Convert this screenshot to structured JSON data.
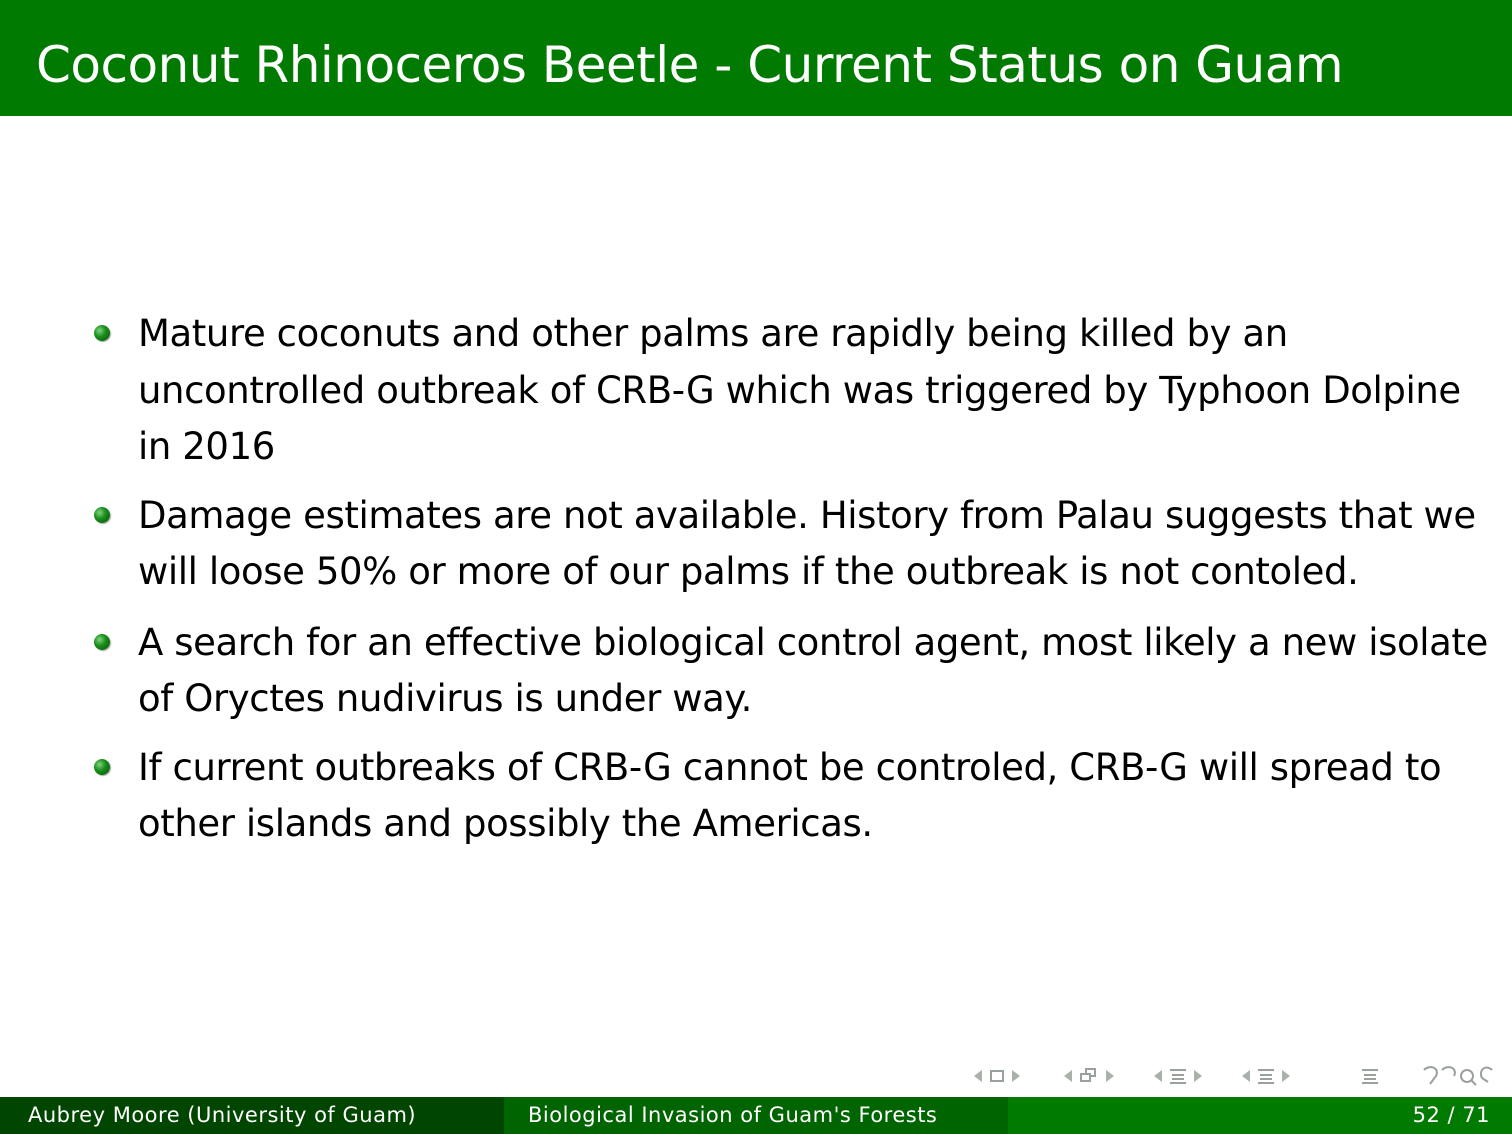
{
  "slide": {
    "title": "Coconut Rhinoceros Beetle - Current Status on Guam",
    "bullets": [
      "Mature coconuts and other palms are rapidly being killed by an uncontrolled outbreak of CRB-G which was triggered by Typhoon Dolpine in 2016",
      "Damage estimates are not available. History from Palau suggests that we will loose 50% or more of our palms if the outbreak is not contoled.",
      "A search for an effective biological control agent, most likely a new isolate of Oryctes nudivirus is under way.",
      "If current outbreaks of CRB-G cannot be controled, CRB-G will spread to other islands and possibly the Americas."
    ]
  },
  "footer": {
    "author": "Aubrey Moore  (University of Guam)",
    "talk_title": "Biological Invasion of Guam's Forests",
    "page_number": "52 / 71"
  },
  "navigation": {
    "icons": [
      "frame-nav-icon",
      "subsection-nav-icon",
      "section-nav-icon",
      "subsection-list-nav-icon",
      "toc-icon",
      "search-undo-redo-icon"
    ]
  },
  "colors": {
    "title_bar": "#007a00",
    "footer_left": "#004500",
    "footer_mid": "#006400",
    "footer_right": "#007a00",
    "bullet": "#1d8f1d"
  }
}
